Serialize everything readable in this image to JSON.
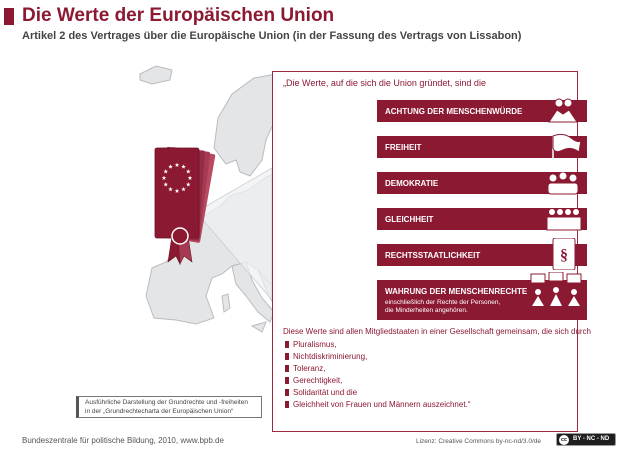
{
  "header": {
    "title": "Die Werte der Europäischen Union",
    "subtitle": "Artikel 2 des Vertrages über die Europäische Union (in der Fassung des Vertrags von Lissabon)"
  },
  "panel": {
    "quote_intro": "„Die Werte, auf die sich die Union gründet, sind die",
    "values": [
      {
        "label": "ACHTUNG DER MENSCHENWÜRDE",
        "icon": "helping-hands-icon"
      },
      {
        "label": "FREIHEIT",
        "icon": "waving-flag-icon"
      },
      {
        "label": "DEMOKRATIE",
        "icon": "voting-crowd-icon"
      },
      {
        "label": "GLEICHHEIT",
        "icon": "equal-people-icon"
      },
      {
        "label": "RECHTSSTAATLICHKEIT",
        "icon": "law-book-icon"
      },
      {
        "label": "WAHRUNG DER MENSCHENRECHTE",
        "sublabel_1": "einschließlich der Rechte der Personen,",
        "sublabel_2": "die Minderheiten angehören.",
        "icon": "protest-signs-icon"
      }
    ],
    "commitment_intro": "Diese Werte sind allen Mitgliedstaaten in einer Gesellschaft gemeinsam, die sich durch",
    "principles": [
      "Pluralismus,",
      "Nichtdiskriminierung,",
      "Toleranz,",
      "Gerechtigkeit,",
      "Solidarität und die",
      "Gleichheit von Frauen und Männern auszeichnet.“"
    ]
  },
  "charta_note": {
    "line_1": "Ausführliche Darstellung der Grundrechte und -freiheiten",
    "line_2": "in der „Grundrechtecharta der Europäischen Union“"
  },
  "footer": {
    "source": "Bundeszentrale für politische Bildung, 2010, www.bpb.de",
    "license": "Lizenz: Creative Commons by-nc-nd/3.0/de",
    "cc_badge": "BY - NC - ND",
    "cc_symbol": "cc"
  },
  "colors": {
    "accent": "#8c1932",
    "map_land": "#e3e5e7",
    "map_outline": "#b9bcc0",
    "document": "#8c1932",
    "stars": "#ffffff"
  }
}
